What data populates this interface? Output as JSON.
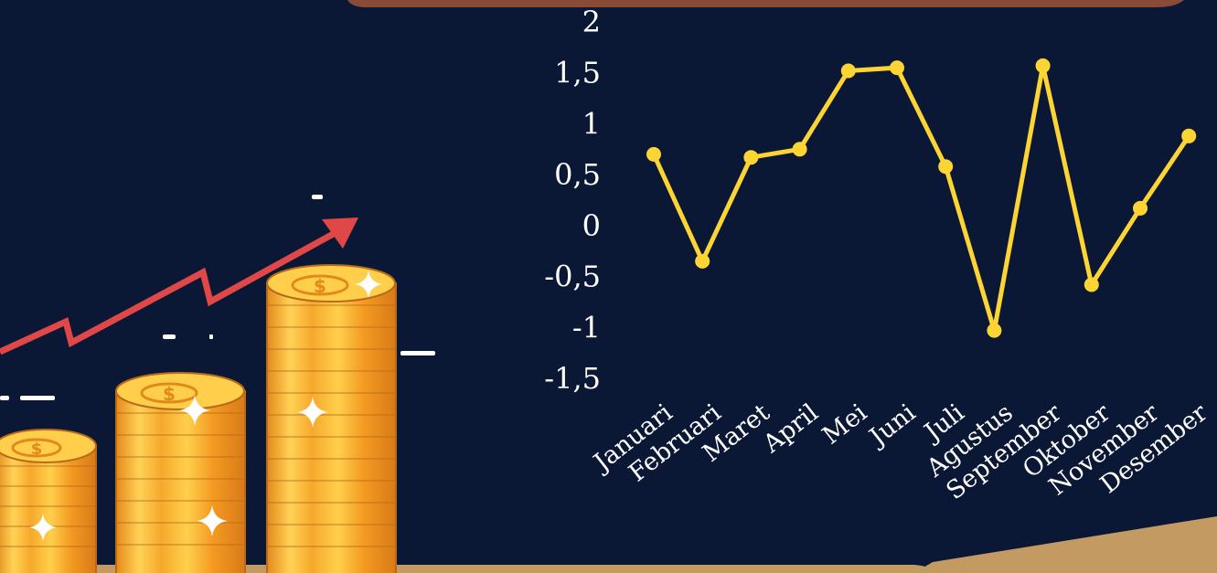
{
  "colors": {
    "background": "#0b1835",
    "line": "#fcd535",
    "arrow": "#e04848",
    "coin_light": "#ffd256",
    "coin_dark": "#e89420",
    "coin_edge": "#b86a1a",
    "banner": "#8a4a38",
    "floor": "#c29a62"
  },
  "decor": {
    "coin_stacks": 3,
    "arrow": "trend-up-arrow",
    "sparkle_icon": "sparkle-icon",
    "dollar_icon": "dollar-icon"
  },
  "chart_data": {
    "type": "line",
    "categories": [
      "Januari",
      "Februari",
      "Maret",
      "April",
      "Mei",
      "Juni",
      "Juli",
      "Agustus",
      "September",
      "Oktober",
      "November",
      "Desember"
    ],
    "values": [
      0.7,
      -0.35,
      0.67,
      0.75,
      1.52,
      1.55,
      0.58,
      -1.03,
      1.57,
      -0.58,
      0.17,
      0.88
    ],
    "yticks": [
      "2",
      "1,5",
      "1",
      "0,5",
      "0",
      "-0,5",
      "-1",
      "-1,5"
    ],
    "ytick_values": [
      2,
      1.5,
      1,
      0.5,
      0,
      -0.5,
      -1,
      -1.5
    ],
    "ylim": [
      -1.5,
      2
    ],
    "title": "",
    "xlabel": "",
    "ylabel": "",
    "grid": false,
    "legend": "none"
  }
}
